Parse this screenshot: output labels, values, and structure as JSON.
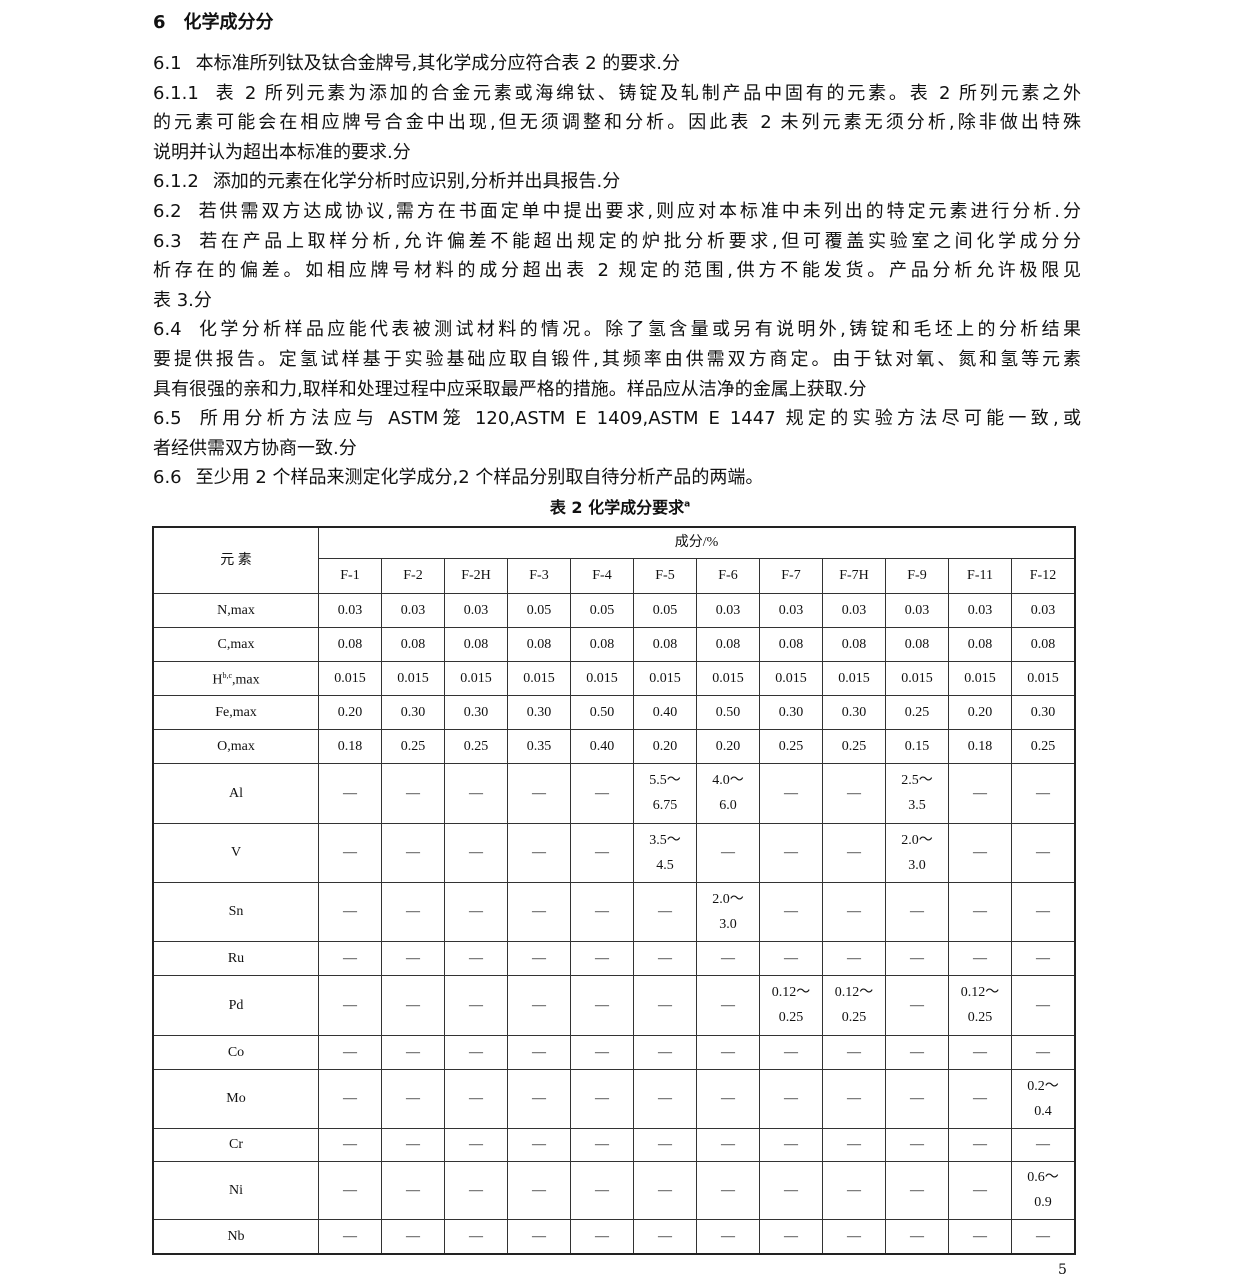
{
  "section": {
    "number": "6",
    "title": "化学成分分"
  },
  "lines": [
    {
      "sec": "6.1",
      "text": "本标准所列钛及钛合金牌号,其化学成分应符合表 2 的要求.分",
      "full": false
    },
    {
      "sec": "6.1.1",
      "text": "表 2 所列元素为添加的合金元素或海绵钛、铸锭及轧制产品中固有的元素。表 2 所列元素之外",
      "full": true
    },
    {
      "sec": "",
      "text": "的元素可能会在相应牌号合金中出现,但无须调整和分析。因此表 2 未列元素无须分析,除非做出特殊",
      "full": true
    },
    {
      "sec": "",
      "text": "说明并认为超出本标准的要求.分",
      "full": false
    },
    {
      "sec": "6.1.2",
      "text": "添加的元素在化学分析时应识别,分析并出具报告.分",
      "full": false
    },
    {
      "sec": "6.2",
      "text": "若供需双方达成协议,需方在书面定单中提出要求,则应对本标准中未列出的特定元素进行分析.分",
      "full": true
    },
    {
      "sec": "6.3",
      "text": "若在产品上取样分析,允许偏差不能超出规定的炉批分析要求,但可覆盖实验室之间化学成分分",
      "full": true
    },
    {
      "sec": "",
      "text": "析存在的偏差。如相应牌号材料的成分超出表 2 规定的范围,供方不能发货。产品分析允许极限见",
      "full": true
    },
    {
      "sec": "",
      "text": "表 3.分",
      "full": false
    },
    {
      "sec": "6.4",
      "text": "化学分析样品应能代表被测试材料的情况。除了氢含量或另有说明外,铸锭和毛坯上的分析结果",
      "full": true
    },
    {
      "sec": "",
      "text": "要提供报告。定氢试样基于实验基础应取自锻件,其频率由供需双方商定。由于钛对氧、氮和氢等元素",
      "full": true
    },
    {
      "sec": "",
      "text": "具有很强的亲和力,取样和处理过程中应采取最严格的措施。样品应从洁净的金属上获取.分",
      "full": false
    },
    {
      "sec": "6.5",
      "text": "所用分析方法应与 ASTM笼 120,ASTM E 1409,ASTM E 1447 规定的实验方法尽可能一致,或",
      "full": true
    },
    {
      "sec": "",
      "text": "者经供需双方协商一致.分",
      "full": false
    },
    {
      "sec": "6.6",
      "text": "至少用 2 个样品来测定化学成分,2 个样品分别取自待分析产品的两端。",
      "full": false
    }
  ],
  "table": {
    "caption": "表 2   化学成分要求",
    "caption_sup": "a",
    "element_header": "元    素",
    "group_header": "成分/%",
    "grades": [
      "F-1",
      "F-2",
      "F-2H",
      "F-3",
      "F-4",
      "F-5",
      "F-6",
      "F-7",
      "F-7H",
      "F-9",
      "F-11",
      "F-12"
    ],
    "rows": [
      {
        "el": "N,max",
        "sup": "",
        "h": 34,
        "v": [
          "0.03",
          "0.03",
          "0.03",
          "0.05",
          "0.05",
          "0.05",
          "0.03",
          "0.03",
          "0.03",
          "0.03",
          "0.03",
          "0.03"
        ]
      },
      {
        "el": "C,max",
        "sup": "",
        "h": 34,
        "v": [
          "0.08",
          "0.08",
          "0.08",
          "0.08",
          "0.08",
          "0.08",
          "0.08",
          "0.08",
          "0.08",
          "0.08",
          "0.08",
          "0.08"
        ]
      },
      {
        "el": ",max",
        "pre": "H",
        "sup": "b,c",
        "h": 34,
        "v": [
          "0.015",
          "0.015",
          "0.015",
          "0.015",
          "0.015",
          "0.015",
          "0.015",
          "0.015",
          "0.015",
          "0.015",
          "0.015",
          "0.015"
        ]
      },
      {
        "el": "Fe,max",
        "sup": "",
        "h": 34,
        "v": [
          "0.20",
          "0.30",
          "0.30",
          "0.30",
          "0.50",
          "0.40",
          "0.50",
          "0.30",
          "0.30",
          "0.25",
          "0.20",
          "0.30"
        ]
      },
      {
        "el": "O,max",
        "sup": "",
        "h": 34,
        "v": [
          "0.18",
          "0.25",
          "0.25",
          "0.35",
          "0.40",
          "0.20",
          "0.20",
          "0.25",
          "0.25",
          "0.15",
          "0.18",
          "0.25"
        ]
      },
      {
        "el": "Al",
        "sup": "",
        "h": 60,
        "v": [
          "—",
          "—",
          "—",
          "—",
          "—",
          "5.5～\n6.75",
          "4.0～\n6.0",
          "—",
          "—",
          "2.5～\n3.5",
          "—",
          "—"
        ]
      },
      {
        "el": "V",
        "sup": "",
        "h": 59,
        "v": [
          "—",
          "—",
          "—",
          "—",
          "—",
          "3.5～\n4.5",
          "—",
          "—",
          "—",
          "2.0～\n3.0",
          "—",
          "—"
        ]
      },
      {
        "el": "Sn",
        "sup": "",
        "h": 59,
        "v": [
          "—",
          "—",
          "—",
          "—",
          "—",
          "—",
          "2.0～\n3.0",
          "—",
          "—",
          "—",
          "—",
          "—"
        ]
      },
      {
        "el": "Ru",
        "sup": "",
        "h": 34,
        "v": [
          "—",
          "—",
          "—",
          "—",
          "—",
          "—",
          "—",
          "—",
          "—",
          "—",
          "—",
          "—"
        ]
      },
      {
        "el": "Pd",
        "sup": "",
        "h": 60,
        "v": [
          "—",
          "—",
          "—",
          "—",
          "—",
          "—",
          "—",
          "0.12～\n0.25",
          "0.12～\n0.25",
          "—",
          "0.12～\n0.25",
          "—"
        ]
      },
      {
        "el": "Co",
        "sup": "",
        "h": 34,
        "v": [
          "—",
          "—",
          "—",
          "—",
          "—",
          "—",
          "—",
          "—",
          "—",
          "—",
          "—",
          "—"
        ]
      },
      {
        "el": "Mo",
        "sup": "",
        "h": 59,
        "v": [
          "—",
          "—",
          "—",
          "—",
          "—",
          "—",
          "—",
          "—",
          "—",
          "—",
          "—",
          "0.2～\n0.4"
        ]
      },
      {
        "el": "Cr",
        "sup": "",
        "h": 33,
        "v": [
          "—",
          "—",
          "—",
          "—",
          "—",
          "—",
          "—",
          "—",
          "—",
          "—",
          "—",
          "—"
        ]
      },
      {
        "el": "Ni",
        "sup": "",
        "h": 58,
        "v": [
          "—",
          "—",
          "—",
          "—",
          "—",
          "—",
          "—",
          "—",
          "—",
          "—",
          "—",
          "0.6～\n0.9"
        ]
      },
      {
        "el": "Nb",
        "sup": "",
        "h": 35,
        "v": [
          "—",
          "—",
          "—",
          "—",
          "—",
          "—",
          "—",
          "—",
          "—",
          "—",
          "—",
          "—"
        ]
      }
    ]
  },
  "page_number": "5"
}
